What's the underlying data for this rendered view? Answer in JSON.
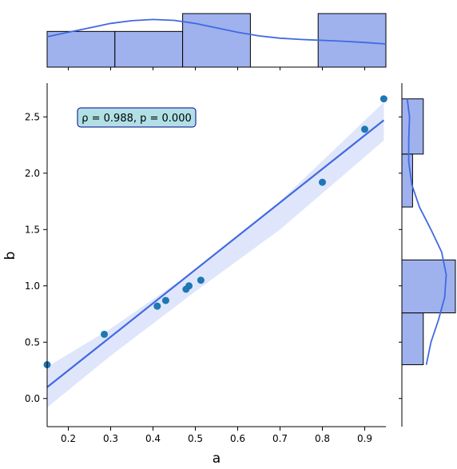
{
  "chart_data": {
    "type": "scatter",
    "subtype": "jointplot-with-regression",
    "xlabel": "a",
    "ylabel": "b",
    "xlim": [
      0.15,
      0.95
    ],
    "ylim": [
      -0.25,
      2.8
    ],
    "xticks": [
      0.2,
      0.3,
      0.4,
      0.5,
      0.6,
      0.7,
      0.8,
      0.9
    ],
    "yticks": [
      0.0,
      0.5,
      1.0,
      1.5,
      2.0,
      2.5
    ],
    "points": [
      {
        "x": 0.15,
        "y": 0.3
      },
      {
        "x": 0.285,
        "y": 0.57
      },
      {
        "x": 0.41,
        "y": 0.82
      },
      {
        "x": 0.43,
        "y": 0.87
      },
      {
        "x": 0.478,
        "y": 0.97
      },
      {
        "x": 0.485,
        "y": 1.0
      },
      {
        "x": 0.513,
        "y": 1.05
      },
      {
        "x": 0.8,
        "y": 1.92
      },
      {
        "x": 0.9,
        "y": 2.39
      },
      {
        "x": 0.945,
        "y": 2.66
      }
    ],
    "regression_line": {
      "x": [
        0.15,
        0.945
      ],
      "y": [
        0.1,
        2.47
      ]
    },
    "confidence_band": {
      "x": [
        0.15,
        0.3,
        0.5,
        0.7,
        0.945
      ],
      "upper": [
        0.28,
        0.62,
        1.14,
        1.75,
        2.63
      ],
      "lower": [
        -0.08,
        0.38,
        0.95,
        1.5,
        2.29
      ]
    },
    "annotation": "ρ = 0.988, p = 0.000",
    "top_histogram": {
      "bins": [
        [
          0.15,
          0.31
        ],
        [
          0.31,
          0.47
        ],
        [
          0.47,
          0.63
        ],
        [
          0.63,
          0.79
        ],
        [
          0.79,
          0.95
        ]
      ],
      "counts": [
        2,
        2,
        3,
        0,
        3
      ]
    },
    "top_kde": {
      "x": [
        0.15,
        0.2,
        0.25,
        0.3,
        0.35,
        0.4,
        0.45,
        0.5,
        0.55,
        0.6,
        0.65,
        0.7,
        0.75,
        0.8,
        0.85,
        0.9,
        0.95
      ],
      "density": [
        1.7,
        1.95,
        2.2,
        2.45,
        2.6,
        2.67,
        2.62,
        2.45,
        2.2,
        1.95,
        1.75,
        1.62,
        1.55,
        1.5,
        1.45,
        1.38,
        1.3
      ]
    },
    "right_histogram": {
      "bins": [
        [
          0.3,
          0.76
        ],
        [
          0.76,
          1.23
        ],
        [
          1.23,
          1.7
        ],
        [
          1.7,
          2.17
        ],
        [
          2.17,
          2.66
        ]
      ],
      "counts": [
        2,
        5,
        0,
        1,
        2
      ]
    },
    "right_kde": {
      "y": [
        2.66,
        2.5,
        2.3,
        2.1,
        1.9,
        1.7,
        1.5,
        1.3,
        1.1,
        0.9,
        0.7,
        0.5,
        0.3
      ],
      "density": [
        0.7,
        1.0,
        0.9,
        0.9,
        1.3,
        2.3,
        3.8,
        5.2,
        5.8,
        5.6,
        4.8,
        3.8,
        3.2
      ]
    },
    "colors": {
      "points": "#1f77b4",
      "line": "#4169e1",
      "band": "#dbe3fb",
      "hist_fill": "#9fb2ee",
      "hist_edge": "#000000",
      "annotation_fill": "#b0e0e6",
      "annotation_edge": "#00008b"
    }
  }
}
